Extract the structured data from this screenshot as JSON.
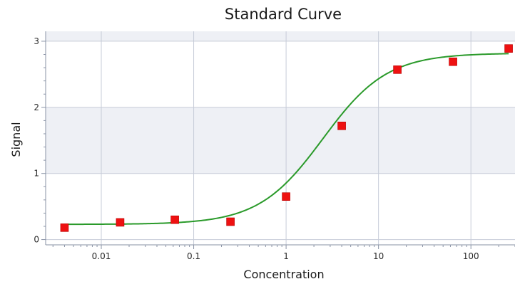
{
  "chart_data": {
    "type": "scatter",
    "title": "Standard Curve",
    "xlabel": "Concentration",
    "ylabel": "Signal",
    "x_scale": "log",
    "xlim": [
      0.0025,
      300
    ],
    "ylim": [
      -0.08,
      3.15
    ],
    "x_ticks": [
      0.01,
      0.1,
      1,
      10,
      100
    ],
    "x_tick_labels": [
      "0.01",
      "0.1",
      "1",
      "10",
      "100"
    ],
    "y_ticks": [
      0,
      1,
      2,
      3
    ],
    "y_tick_labels": [
      "0",
      "1",
      "2",
      "3"
    ],
    "grid": true,
    "band_color": "#eef0f5",
    "grid_color": "#c7ccd8",
    "series": [
      {
        "type": "scatter",
        "marker": "square",
        "color": "#ee1111",
        "x": [
          0.004,
          0.016,
          0.0625,
          0.25,
          1,
          4,
          16,
          64,
          256
        ],
        "y": [
          0.18,
          0.26,
          0.3,
          0.27,
          0.65,
          1.72,
          2.57,
          2.69,
          2.89
        ]
      },
      {
        "type": "line",
        "color": "#2a9a2a",
        "model": "4PL",
        "params": {
          "bottom": 0.23,
          "top": 2.82,
          "ec50": 2.5,
          "hill": 1.25
        },
        "x_range": [
          0.004,
          256
        ]
      }
    ]
  }
}
